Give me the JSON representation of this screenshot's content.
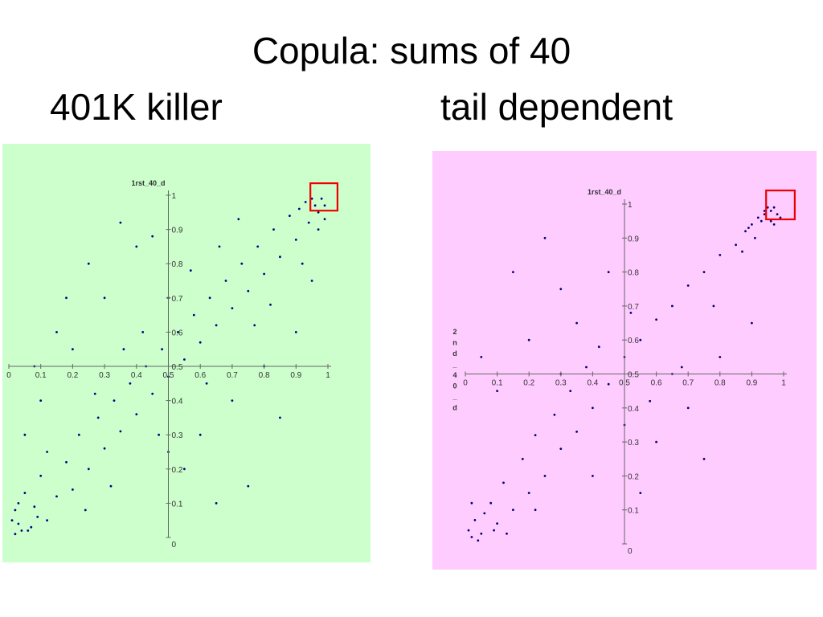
{
  "title": "Copula: sums of 40",
  "subtitles": {
    "left": "401K killer",
    "right": "tail dependent"
  },
  "chart_data": [
    {
      "type": "scatter",
      "name": "401K killer",
      "background": "#ccffcc",
      "point_color": "#000080",
      "highlight_color": "#ee0000",
      "xlabel": "",
      "ylabel": "",
      "top_label": "1rst_40_d",
      "side_label": "",
      "xlim": [
        0,
        1
      ],
      "ylim": [
        0,
        1
      ],
      "x_ticks": [
        "0",
        "0.1",
        "0.2",
        "0.3",
        "0.4",
        "0.5",
        "0.6",
        "0.7",
        "0.8",
        "0.9",
        "1"
      ],
      "y_ticks": [
        "0",
        "0.1",
        "0.2",
        "0.3",
        "0.4",
        "0.5",
        "0.6",
        "0.7",
        "0.8",
        "0.9",
        "1"
      ],
      "crosshair": [
        0.5,
        0.5
      ],
      "highlight_box": {
        "x": [
          0.945,
          1.03
        ],
        "y": [
          0.955,
          1.035
        ]
      },
      "points": [
        [
          0.02,
          0.01
        ],
        [
          0.03,
          0.04
        ],
        [
          0.06,
          0.02
        ],
        [
          0.08,
          0.09
        ],
        [
          0.12,
          0.05
        ],
        [
          0.05,
          0.13
        ],
        [
          0.15,
          0.12
        ],
        [
          0.1,
          0.18
        ],
        [
          0.2,
          0.14
        ],
        [
          0.18,
          0.22
        ],
        [
          0.25,
          0.2
        ],
        [
          0.22,
          0.3
        ],
        [
          0.3,
          0.26
        ],
        [
          0.28,
          0.35
        ],
        [
          0.35,
          0.31
        ],
        [
          0.33,
          0.4
        ],
        [
          0.4,
          0.36
        ],
        [
          0.38,
          0.45
        ],
        [
          0.45,
          0.42
        ],
        [
          0.43,
          0.5
        ],
        [
          0.5,
          0.47
        ],
        [
          0.48,
          0.55
        ],
        [
          0.55,
          0.52
        ],
        [
          0.53,
          0.6
        ],
        [
          0.6,
          0.57
        ],
        [
          0.58,
          0.65
        ],
        [
          0.65,
          0.62
        ],
        [
          0.63,
          0.7
        ],
        [
          0.7,
          0.67
        ],
        [
          0.68,
          0.75
        ],
        [
          0.75,
          0.72
        ],
        [
          0.73,
          0.8
        ],
        [
          0.8,
          0.77
        ],
        [
          0.78,
          0.85
        ],
        [
          0.85,
          0.82
        ],
        [
          0.83,
          0.9
        ],
        [
          0.9,
          0.87
        ],
        [
          0.88,
          0.94
        ],
        [
          0.94,
          0.92
        ],
        [
          0.96,
          0.97
        ],
        [
          0.98,
          0.99
        ],
        [
          0.97,
          0.95
        ],
        [
          0.1,
          0.4
        ],
        [
          0.2,
          0.55
        ],
        [
          0.3,
          0.7
        ],
        [
          0.15,
          0.6
        ],
        [
          0.4,
          0.85
        ],
        [
          0.05,
          0.3
        ],
        [
          0.25,
          0.8
        ],
        [
          0.35,
          0.92
        ],
        [
          0.45,
          0.88
        ],
        [
          0.6,
          0.3
        ],
        [
          0.7,
          0.4
        ],
        [
          0.8,
          0.5
        ],
        [
          0.55,
          0.2
        ],
        [
          0.9,
          0.6
        ],
        [
          0.85,
          0.35
        ],
        [
          0.75,
          0.15
        ],
        [
          0.65,
          0.1
        ],
        [
          0.95,
          0.75
        ],
        [
          0.12,
          0.25
        ],
        [
          0.27,
          0.42
        ],
        [
          0.42,
          0.6
        ],
        [
          0.57,
          0.78
        ],
        [
          0.72,
          0.93
        ],
        [
          0.32,
          0.15
        ],
        [
          0.47,
          0.3
        ],
        [
          0.62,
          0.45
        ],
        [
          0.77,
          0.62
        ],
        [
          0.92,
          0.8
        ],
        [
          0.08,
          0.5
        ],
        [
          0.18,
          0.7
        ],
        [
          0.5,
          0.7
        ],
        [
          0.5,
          0.25
        ],
        [
          0.66,
          0.85
        ],
        [
          0.36,
          0.55
        ],
        [
          0.24,
          0.08
        ],
        [
          0.82,
          0.68
        ],
        [
          0.02,
          0.08
        ],
        [
          0.07,
          0.03
        ],
        [
          0.01,
          0.05
        ],
        [
          0.04,
          0.02
        ],
        [
          0.09,
          0.06
        ],
        [
          0.03,
          0.1
        ],
        [
          0.93,
          0.98
        ],
        [
          0.99,
          0.93
        ],
        [
          0.91,
          0.96
        ],
        [
          0.97,
          0.9
        ],
        [
          0.95,
          0.99
        ],
        [
          0.99,
          0.97
        ]
      ]
    },
    {
      "type": "scatter",
      "name": "tail dependent",
      "background": "#ffccff",
      "point_color": "#000080",
      "highlight_color": "#ee0000",
      "xlabel": "",
      "ylabel": "",
      "top_label": "1rst_40_d",
      "side_label": "2nd_40_d",
      "xlim": [
        0,
        1
      ],
      "ylim": [
        0,
        1
      ],
      "x_ticks": [
        "0",
        "0.1",
        "0.2",
        "0.3",
        "0.4",
        "0.5",
        "0.6",
        "0.7",
        "0.8",
        "0.9",
        "1"
      ],
      "y_ticks": [
        "0",
        "0.1",
        "0.2",
        "0.3",
        "0.4",
        "0.5",
        "0.6",
        "0.7",
        "0.8",
        "0.9",
        "1"
      ],
      "crosshair": [
        0.5,
        0.5
      ],
      "highlight_box": {
        "x": [
          0.945,
          1.035
        ],
        "y": [
          0.955,
          1.04
        ]
      },
      "points": [
        [
          0.02,
          0.02
        ],
        [
          0.05,
          0.03
        ],
        [
          0.03,
          0.07
        ],
        [
          0.1,
          0.06
        ],
        [
          0.08,
          0.12
        ],
        [
          0.15,
          0.1
        ],
        [
          0.12,
          0.18
        ],
        [
          0.2,
          0.15
        ],
        [
          0.18,
          0.25
        ],
        [
          0.25,
          0.2
        ],
        [
          0.22,
          0.32
        ],
        [
          0.3,
          0.28
        ],
        [
          0.28,
          0.38
        ],
        [
          0.35,
          0.33
        ],
        [
          0.33,
          0.45
        ],
        [
          0.4,
          0.4
        ],
        [
          0.38,
          0.52
        ],
        [
          0.45,
          0.47
        ],
        [
          0.5,
          0.55
        ],
        [
          0.55,
          0.6
        ],
        [
          0.6,
          0.66
        ],
        [
          0.65,
          0.7
        ],
        [
          0.7,
          0.76
        ],
        [
          0.75,
          0.8
        ],
        [
          0.8,
          0.85
        ],
        [
          0.85,
          0.88
        ],
        [
          0.88,
          0.92
        ],
        [
          0.9,
          0.94
        ],
        [
          0.92,
          0.96
        ],
        [
          0.94,
          0.97
        ],
        [
          0.96,
          0.98
        ],
        [
          0.97,
          0.99
        ],
        [
          0.93,
          0.95
        ],
        [
          0.91,
          0.9
        ],
        [
          0.89,
          0.93
        ],
        [
          0.87,
          0.86
        ],
        [
          0.1,
          0.45
        ],
        [
          0.2,
          0.6
        ],
        [
          0.15,
          0.8
        ],
        [
          0.3,
          0.75
        ],
        [
          0.05,
          0.55
        ],
        [
          0.25,
          0.9
        ],
        [
          0.6,
          0.3
        ],
        [
          0.7,
          0.4
        ],
        [
          0.8,
          0.55
        ],
        [
          0.55,
          0.15
        ],
        [
          0.75,
          0.25
        ],
        [
          0.9,
          0.65
        ],
        [
          0.4,
          0.2
        ],
        [
          0.35,
          0.65
        ],
        [
          0.45,
          0.8
        ],
        [
          0.65,
          0.5
        ],
        [
          0.5,
          0.35
        ],
        [
          0.3,
          0.5
        ],
        [
          0.01,
          0.04
        ],
        [
          0.04,
          0.01
        ],
        [
          0.06,
          0.09
        ],
        [
          0.09,
          0.04
        ],
        [
          0.02,
          0.12
        ],
        [
          0.13,
          0.03
        ],
        [
          0.98,
          0.97
        ],
        [
          0.95,
          0.99
        ],
        [
          0.99,
          0.96
        ],
        [
          0.96,
          0.95
        ],
        [
          0.94,
          0.98
        ],
        [
          0.97,
          0.94
        ],
        [
          0.42,
          0.58
        ],
        [
          0.58,
          0.42
        ],
        [
          0.52,
          0.68
        ],
        [
          0.68,
          0.52
        ],
        [
          0.78,
          0.7
        ],
        [
          0.22,
          0.1
        ]
      ]
    }
  ]
}
